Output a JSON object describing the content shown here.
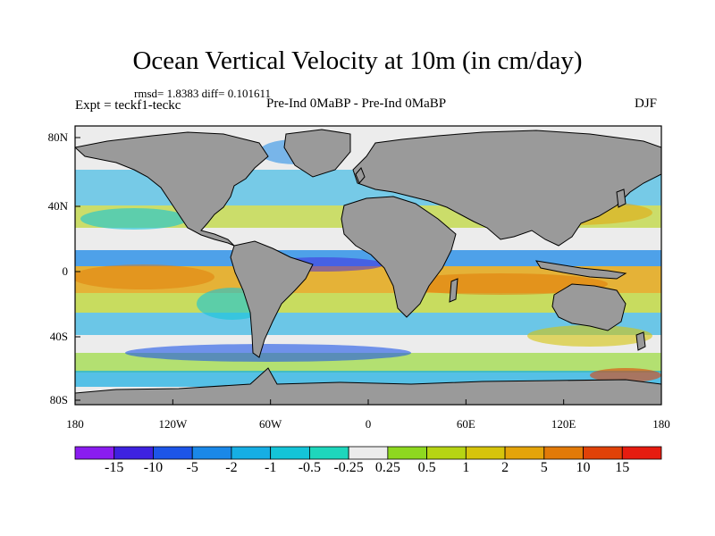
{
  "title": "Ocean Vertical Velocity at 10m (in cm/day)",
  "stats": "rmsd= 1.8383 diff= 0.101611",
  "expt": "Expt = teckf1-teckc",
  "comparison": "Pre-Ind 0MaBP - Pre-Ind 0MaBP",
  "season": "DJF",
  "y_ticks": [
    "80N",
    "40N",
    "0",
    "40S",
    "80S"
  ],
  "x_ticks": [
    "180",
    "120W",
    "60W",
    "0",
    "60E",
    "120E",
    "180"
  ],
  "colorbar": {
    "labels": [
      "-15",
      "-10",
      "-5",
      "-2",
      "-1",
      "-0.5",
      "-0.25",
      "0.25",
      "0.5",
      "1",
      "2",
      "5",
      "10",
      "15"
    ],
    "colors": [
      "#8a1cf0",
      "#3e22e0",
      "#1d55e8",
      "#1a88e8",
      "#16aee4",
      "#14c4d8",
      "#1ed6bc",
      "#ececec",
      "#8ed820",
      "#b6d414",
      "#d6c40c",
      "#e4a40a",
      "#e27a08",
      "#e04208",
      "#e61c10"
    ]
  },
  "land_color": "#9a9a9a"
}
